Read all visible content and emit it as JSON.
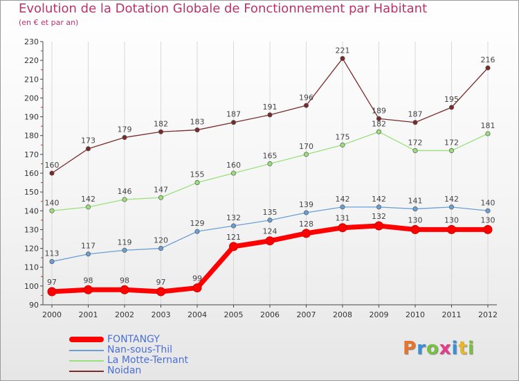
{
  "title": "Evolution de la Dotation Globale de Fonctionnement par Habitant",
  "subtitle": "(en € et par an)",
  "logo_text": "Proxiti",
  "colors": {
    "title": "#b8336a",
    "legend_text": "#4a6fd4"
  },
  "chart_data": {
    "type": "line",
    "title": "Evolution de la Dotation Globale de Fonctionnement par Habitant",
    "subtitle": "(en € et par an)",
    "xlabel": "",
    "ylabel": "",
    "ylim": [
      90,
      230
    ],
    "yticks": [
      90,
      100,
      110,
      120,
      130,
      140,
      150,
      160,
      170,
      180,
      190,
      200,
      210,
      220,
      230
    ],
    "grid": "vertical",
    "legend_position": "bottom-left",
    "x": [
      "2000",
      "2001",
      "2002",
      "2003",
      "2004",
      "2005",
      "2006",
      "2007",
      "2008",
      "2009",
      "2010",
      "2011",
      "2012"
    ],
    "series": [
      {
        "name": "FONTANGY",
        "color": "#ff0000",
        "values": [
          97,
          98,
          98,
          97,
          99,
          121,
          124,
          128,
          131,
          132,
          130,
          130,
          130
        ]
      },
      {
        "name": "Nan-sous-Thil",
        "color": "#6a9fd4",
        "values": [
          113,
          117,
          119,
          120,
          129,
          132,
          135,
          139,
          142,
          142,
          141,
          142,
          140
        ]
      },
      {
        "name": "La Motte-Ternant",
        "color": "#99e07a",
        "values": [
          140,
          142,
          146,
          147,
          155,
          160,
          165,
          170,
          175,
          182,
          172,
          172,
          181
        ]
      },
      {
        "name": "Noidan",
        "color": "#7a2a2a",
        "values": [
          160,
          173,
          179,
          182,
          183,
          187,
          191,
          196,
          221,
          189,
          187,
          195,
          216
        ]
      }
    ]
  }
}
